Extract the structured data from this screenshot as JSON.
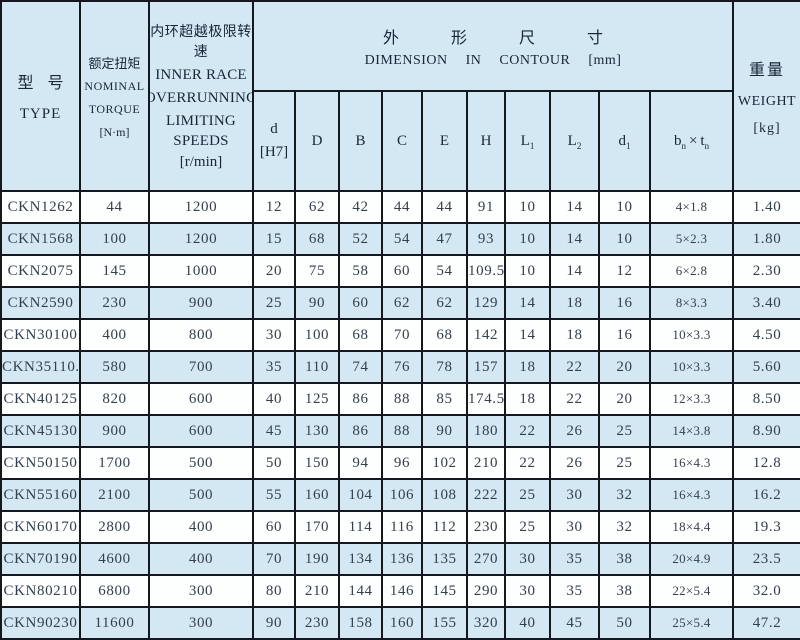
{
  "table": {
    "header": {
      "type": {
        "cn": "型 号",
        "en": "TYPE"
      },
      "torque": {
        "cn": "额定扭矩",
        "en_line1": "NOMINAL",
        "en_line2": "TORQUE",
        "unit": "[N·m]"
      },
      "speed": {
        "cn": "内环超越极限转速",
        "en_line1": "INNER RACE",
        "en_line2": "OVERRUNNING",
        "en_line3": "LIMITING SPEEDS",
        "unit": "[r/min]"
      },
      "dimension": {
        "cn": "外 形 尺 寸",
        "en": "DIMENSION IN CONTOUR [mm]"
      },
      "weight": {
        "cn": "重量",
        "en": "WEIGHT",
        "unit": "[kg]"
      },
      "dim_cols": {
        "d": {
          "line1": "d",
          "line2": "[H7]"
        },
        "D": "D",
        "B": "B",
        "C": "C",
        "E": "E",
        "H": "H",
        "L1": {
          "base": "L",
          "sub": "1"
        },
        "L2": {
          "base": "L",
          "sub": "2"
        },
        "d1": {
          "base": "d",
          "sub": "1"
        },
        "bt": {
          "b": "b",
          "b_sub": "n",
          "times": "×",
          "t": "t",
          "t_sub": "n"
        }
      }
    },
    "rows": [
      [
        "CKN1262",
        "44",
        "1200",
        "12",
        "62",
        "42",
        "44",
        "44",
        "91",
        "10",
        "14",
        "10",
        "4×1.8",
        "1.40"
      ],
      [
        "CKN1568",
        "100",
        "1200",
        "15",
        "68",
        "52",
        "54",
        "47",
        "93",
        "10",
        "14",
        "10",
        "5×2.3",
        "1.80"
      ],
      [
        "CKN2075",
        "145",
        "1000",
        "20",
        "75",
        "58",
        "60",
        "54",
        "109.5",
        "10",
        "14",
        "12",
        "6×2.8",
        "2.30"
      ],
      [
        "CKN2590",
        "230",
        "900",
        "25",
        "90",
        "60",
        "62",
        "62",
        "129",
        "14",
        "18",
        "16",
        "8×3.3",
        "3.40"
      ],
      [
        "CKN30100",
        "400",
        "800",
        "30",
        "100",
        "68",
        "70",
        "68",
        "142",
        "14",
        "18",
        "16",
        "10×3.3",
        "4.50"
      ],
      [
        "CKN35110.",
        "580",
        "700",
        "35",
        "110",
        "74",
        "76",
        "78",
        "157",
        "18",
        "22",
        "20",
        "10×3.3",
        "5.60"
      ],
      [
        "CKN40125",
        "820",
        "600",
        "40",
        "125",
        "86",
        "88",
        "85",
        "174.5",
        "18",
        "22",
        "20",
        "12×3.3",
        "8.50"
      ],
      [
        "CKN45130",
        "900",
        "600",
        "45",
        "130",
        "86",
        "88",
        "90",
        "180",
        "22",
        "26",
        "25",
        "14×3.8",
        "8.90"
      ],
      [
        "CKN50150",
        "1700",
        "500",
        "50",
        "150",
        "94",
        "96",
        "102",
        "210",
        "22",
        "26",
        "25",
        "16×4.3",
        "12.8"
      ],
      [
        "CKN55160",
        "2100",
        "500",
        "55",
        "160",
        "104",
        "106",
        "108",
        "222",
        "25",
        "30",
        "32",
        "16×4.3",
        "16.2"
      ],
      [
        "CKN60170",
        "2800",
        "400",
        "60",
        "170",
        "114",
        "116",
        "112",
        "230",
        "25",
        "30",
        "32",
        "18×4.4",
        "19.3"
      ],
      [
        "CKN70190",
        "4600",
        "400",
        "70",
        "190",
        "134",
        "136",
        "135",
        "270",
        "30",
        "35",
        "38",
        "20×4.9",
        "23.5"
      ],
      [
        "CKN80210",
        "6800",
        "300",
        "80",
        "210",
        "144",
        "146",
        "145",
        "290",
        "30",
        "35",
        "38",
        "22×5.4",
        "32.0"
      ],
      [
        "CKN90230",
        "11600",
        "300",
        "90",
        "230",
        "158",
        "160",
        "155",
        "320",
        "40",
        "45",
        "50",
        "25×5.4",
        "47.2"
      ]
    ]
  },
  "colors": {
    "row_alt": "#d4e8f4",
    "row_base": "#fdfefe",
    "border": "#15181c",
    "header_text": "#182635",
    "data_text": "#333f4b"
  }
}
